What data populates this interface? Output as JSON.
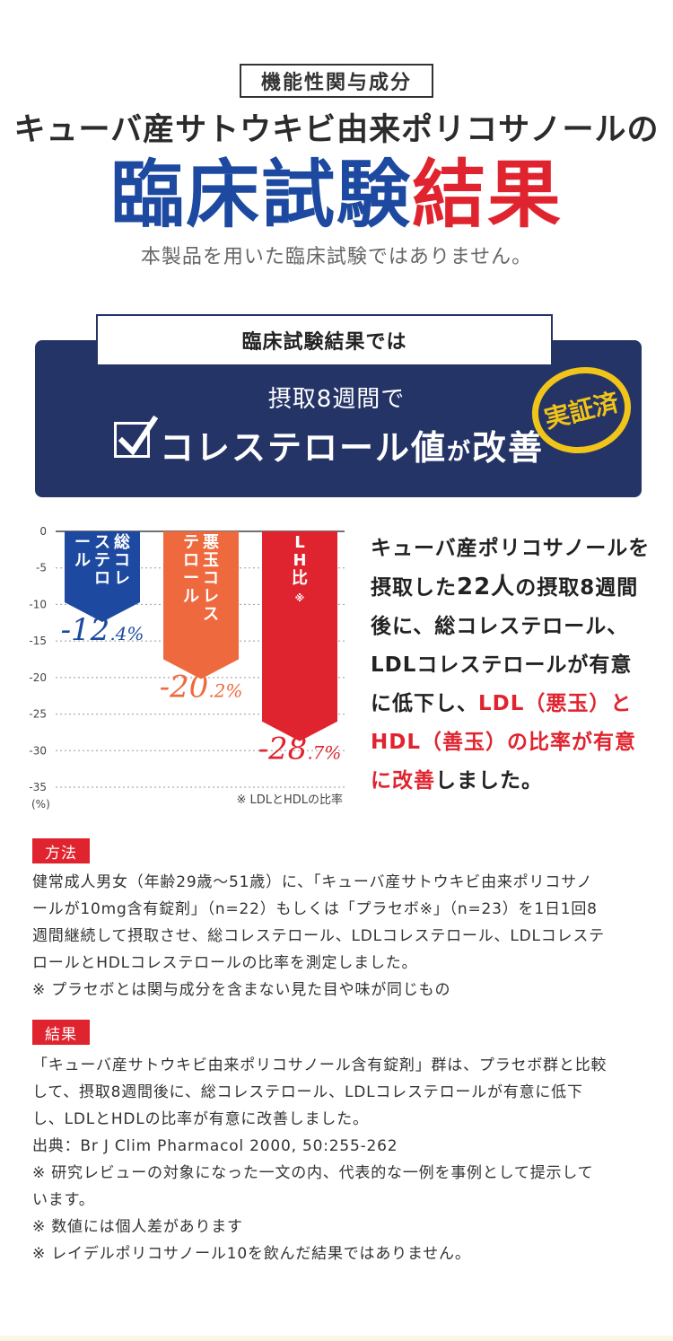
{
  "header": {
    "badge": "機能性関与成分",
    "headline": "キューバ産サトウキビ由来ポリコサノールの",
    "title_blue": "臨床試験",
    "title_red": "結果",
    "disclaimer": "本製品を用いた臨床試験ではありません。"
  },
  "summary": {
    "label": "臨床試験結果では",
    "sub": "摂取8週間で",
    "main_a": "コレステロール値",
    "main_b": "が",
    "main_c": "改善",
    "stamp": "実証済"
  },
  "chart_data": {
    "type": "bar",
    "categories": [
      "総コレステロール",
      "悪玉コレステロール",
      "LH比※"
    ],
    "category_lines": [
      [
        "総コレ",
        "ステロ",
        "ール"
      ],
      [
        "悪玉コレス",
        "テロール"
      ],
      [
        "LH比※"
      ]
    ],
    "values": [
      -12.4,
      -20.2,
      -28.7
    ],
    "value_labels": [
      "-12.4%",
      "-20.2%",
      "-28.7%"
    ],
    "colors": [
      "#1d4aa0",
      "#ee6a3e",
      "#e0242f"
    ],
    "ylim": [
      -35,
      0
    ],
    "yticks": [
      0,
      -5,
      -10,
      -15,
      -20,
      -25,
      -30,
      -35
    ],
    "ylabel": "(%)",
    "note": "※ LDLとHDLの比率"
  },
  "description": {
    "l1": "キューバ産ポリコサノールを",
    "l2a": "摂取した",
    "l2b": "22人",
    "l2c": "の",
    "l2d": "摂取8週間",
    "l3": "後に、総コレステロール、",
    "l4": "LDLコレステロールが有意",
    "l5a": "に低下し、",
    "l5b": "LDL（悪玉）と",
    "l6": "HDL（善玉）の比率が有意",
    "l7a": "に改善",
    "l7b": "しました。"
  },
  "method": {
    "tag": "方法",
    "lines": [
      "健常成人男女（年齢29歳～51歳）に、「キューバ産サトウキビ由来ポリコサノ",
      "ールが10mg含有錠剤」（n=22）もしくは「プラセボ※」（n=23）を1日1回8",
      "週間継続して摂取させ、総コレステロール、LDLコレステロール、LDLコレステ",
      "ロールとHDLコレステロールの比率を測定しました。",
      "※ プラセボとは関与成分を含まない見た目や味が同じもの"
    ]
  },
  "result": {
    "tag": "結果",
    "lines": [
      "「キューバ産サトウキビ由来ポリコサノール含有錠剤」群は、プラセボ群と比較",
      "して、摂取8週間後に、総コレステロール、LDLコレステロールが有意に低下",
      "し、LDLとHDLの比率が有意に改善しました。",
      "出典：Br J Clim Pharmacol 2000, 50:255-262",
      "※ 研究レビューの対象になった一文の内、代表的な一例を事例として提示して",
      "います。",
      "※ 数値には個人差があります",
      "※ レイデルポリコサノール10を飲んだ結果ではありません。"
    ]
  }
}
